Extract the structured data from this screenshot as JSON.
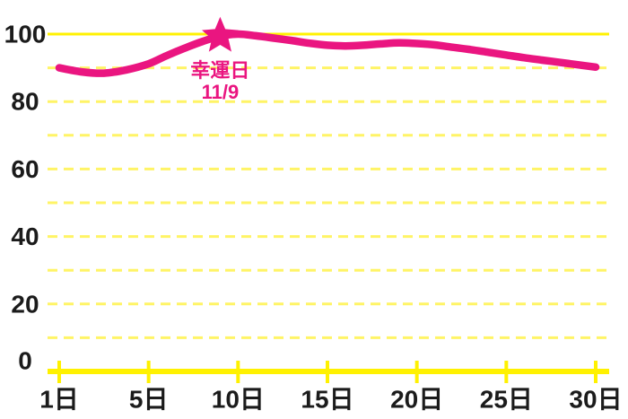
{
  "page": {
    "background": "#FFFFFF",
    "description_label": "monthly fortune line chart"
  },
  "chart_data": {
    "type": "line",
    "title": "",
    "xlabel": "",
    "ylabel": "",
    "legend": "none",
    "grid": "horizontal dashed every 10, solid line at 100, solid axis at 0",
    "ylim": [
      0,
      100
    ],
    "days": [
      1,
      2,
      3,
      4,
      5,
      6,
      7,
      8,
      9,
      10,
      11,
      12,
      13,
      14,
      15,
      16,
      17,
      18,
      19,
      20,
      21,
      22,
      23,
      24,
      25,
      26,
      27,
      28,
      29,
      30
    ],
    "values": [
      90,
      88.8,
      88.4,
      89.4,
      91.2,
      93.6,
      95.8,
      97.8,
      99.4,
      100,
      99.5,
      98.8,
      98.1,
      97.3,
      96.7,
      96.5,
      96.7,
      97.1,
      97.4,
      97.2,
      96.8,
      96.1,
      95.4,
      94.6,
      93.8,
      93,
      92.3,
      91.6,
      90.9,
      90.2
    ],
    "x_tick_days": [
      1,
      5,
      10,
      15,
      20,
      25,
      30
    ],
    "x_tick_labels": [
      "1日",
      "5日",
      "10日",
      "15日",
      "20日",
      "25日",
      "30日"
    ],
    "y_tick_values": [
      0,
      20,
      40,
      60,
      80,
      100
    ],
    "y_tick_labels": [
      "0",
      "20",
      "40",
      "60",
      "80",
      "100"
    ],
    "y_gridline_values": [
      10,
      20,
      30,
      40,
      50,
      60,
      70,
      80,
      90
    ],
    "y_max_line_value": 100,
    "annotation": {
      "label": "幸運日",
      "date_label": "11/9",
      "day": 9,
      "marker": "star"
    },
    "colors": {
      "line": "#EA1580",
      "star": "#EA1580",
      "annotation_text": "#EA1580",
      "axis_yellow": "#FFF100",
      "grid_yellow": "#FFF466",
      "tick_label": "#1B1B1B",
      "background": "#FFFFFF"
    }
  }
}
